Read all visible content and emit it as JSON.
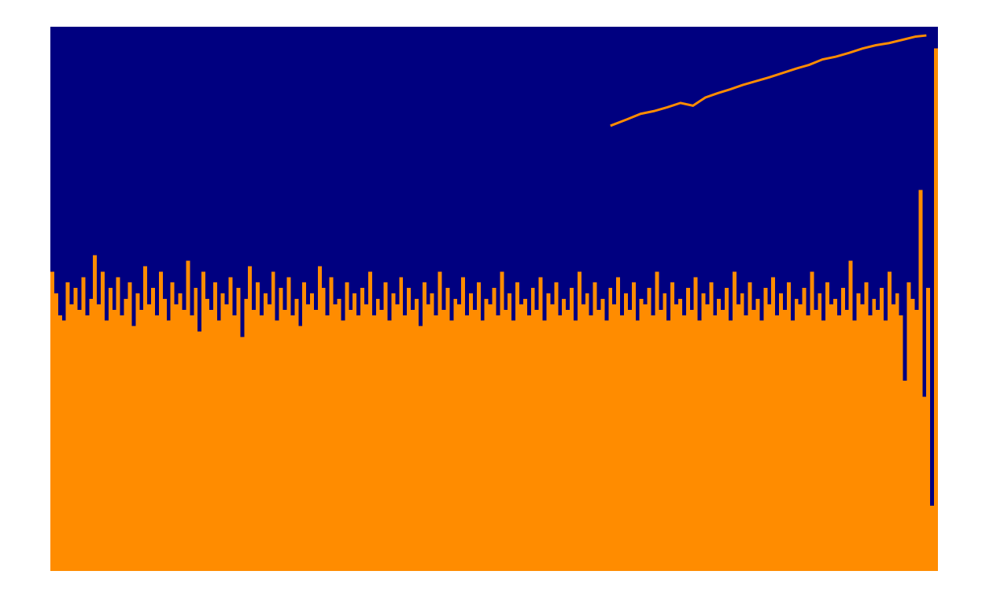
{
  "colors": {
    "background": "#000080",
    "fill": "#FF8C00",
    "page": "#ffffff"
  },
  "chart_data": {
    "type": "area",
    "xlim": [
      0,
      1
    ],
    "ylim": [
      0,
      1
    ],
    "grid": false,
    "legend": "none",
    "series": [
      {
        "values": [
          0.55,
          0.51,
          0.47,
          0.46,
          0.53,
          0.49,
          0.52,
          0.48,
          0.54,
          0.47,
          0.5,
          0.58,
          0.49,
          0.55,
          0.46,
          0.52,
          0.48,
          0.54,
          0.47,
          0.5,
          0.53,
          0.45,
          0.51,
          0.48,
          0.56,
          0.49,
          0.52,
          0.47,
          0.55,
          0.5,
          0.46,
          0.53,
          0.49,
          0.51,
          0.48,
          0.57,
          0.47,
          0.52,
          0.44,
          0.55,
          0.5,
          0.48,
          0.53,
          0.46,
          0.51,
          0.49,
          0.54,
          0.47,
          0.52,
          0.43,
          0.5,
          0.56,
          0.48,
          0.53,
          0.47,
          0.51,
          0.49,
          0.55,
          0.46,
          0.52,
          0.48,
          0.54,
          0.47,
          0.5,
          0.45,
          0.53,
          0.49,
          0.51,
          0.48,
          0.56,
          0.52,
          0.47,
          0.54,
          0.49,
          0.5,
          0.46,
          0.53,
          0.48,
          0.51,
          0.47,
          0.52,
          0.49,
          0.55,
          0.47,
          0.5,
          0.48,
          0.53,
          0.46,
          0.51,
          0.49,
          0.54,
          0.47,
          0.52,
          0.48,
          0.5,
          0.45,
          0.53,
          0.49,
          0.51,
          0.47,
          0.55,
          0.48,
          0.52,
          0.46,
          0.5,
          0.49,
          0.54,
          0.47,
          0.51,
          0.48,
          0.53,
          0.46,
          0.5,
          0.49,
          0.52,
          0.47,
          0.55,
          0.48,
          0.51,
          0.46,
          0.53,
          0.49,
          0.5,
          0.47,
          0.52,
          0.48,
          0.54,
          0.46,
          0.51,
          0.49,
          0.53,
          0.47,
          0.5,
          0.48,
          0.52,
          0.46,
          0.55,
          0.49,
          0.51,
          0.47,
          0.53,
          0.48,
          0.5,
          0.46,
          0.52,
          0.49,
          0.54,
          0.47,
          0.51,
          0.48,
          0.53,
          0.46,
          0.5,
          0.49,
          0.52,
          0.47,
          0.55,
          0.48,
          0.51,
          0.46,
          0.53,
          0.49,
          0.5,
          0.47,
          0.52,
          0.48,
          0.54,
          0.46,
          0.51,
          0.49,
          0.53,
          0.47,
          0.5,
          0.48,
          0.52,
          0.46,
          0.55,
          0.49,
          0.51,
          0.47,
          0.53,
          0.48,
          0.5,
          0.46,
          0.52,
          0.49,
          0.54,
          0.47,
          0.51,
          0.48,
          0.53,
          0.46,
          0.5,
          0.49,
          0.52,
          0.47,
          0.55,
          0.48,
          0.51,
          0.46,
          0.53,
          0.49,
          0.5,
          0.47,
          0.52,
          0.48,
          0.57,
          0.46,
          0.51,
          0.49,
          0.53,
          0.47,
          0.5,
          0.48,
          0.52,
          0.46,
          0.55,
          0.49,
          0.51,
          0.47,
          0.35,
          0.53,
          0.5,
          0.48,
          0.7,
          0.32,
          0.52,
          0.12,
          0.96
        ]
      },
      {
        "x": [
          0.631,
          0.65,
          0.665,
          0.68,
          0.695,
          0.71,
          0.724,
          0.738,
          0.752,
          0.766,
          0.78,
          0.795,
          0.81,
          0.825,
          0.84,
          0.855,
          0.87,
          0.885,
          0.9,
          0.915,
          0.93,
          0.945,
          0.96,
          0.975,
          0.987
        ],
        "y": [
          0.818,
          0.83,
          0.84,
          0.845,
          0.852,
          0.86,
          0.855,
          0.87,
          0.878,
          0.885,
          0.893,
          0.9,
          0.907,
          0.915,
          0.923,
          0.93,
          0.94,
          0.945,
          0.952,
          0.96,
          0.966,
          0.97,
          0.976,
          0.982,
          0.984
        ]
      }
    ]
  }
}
